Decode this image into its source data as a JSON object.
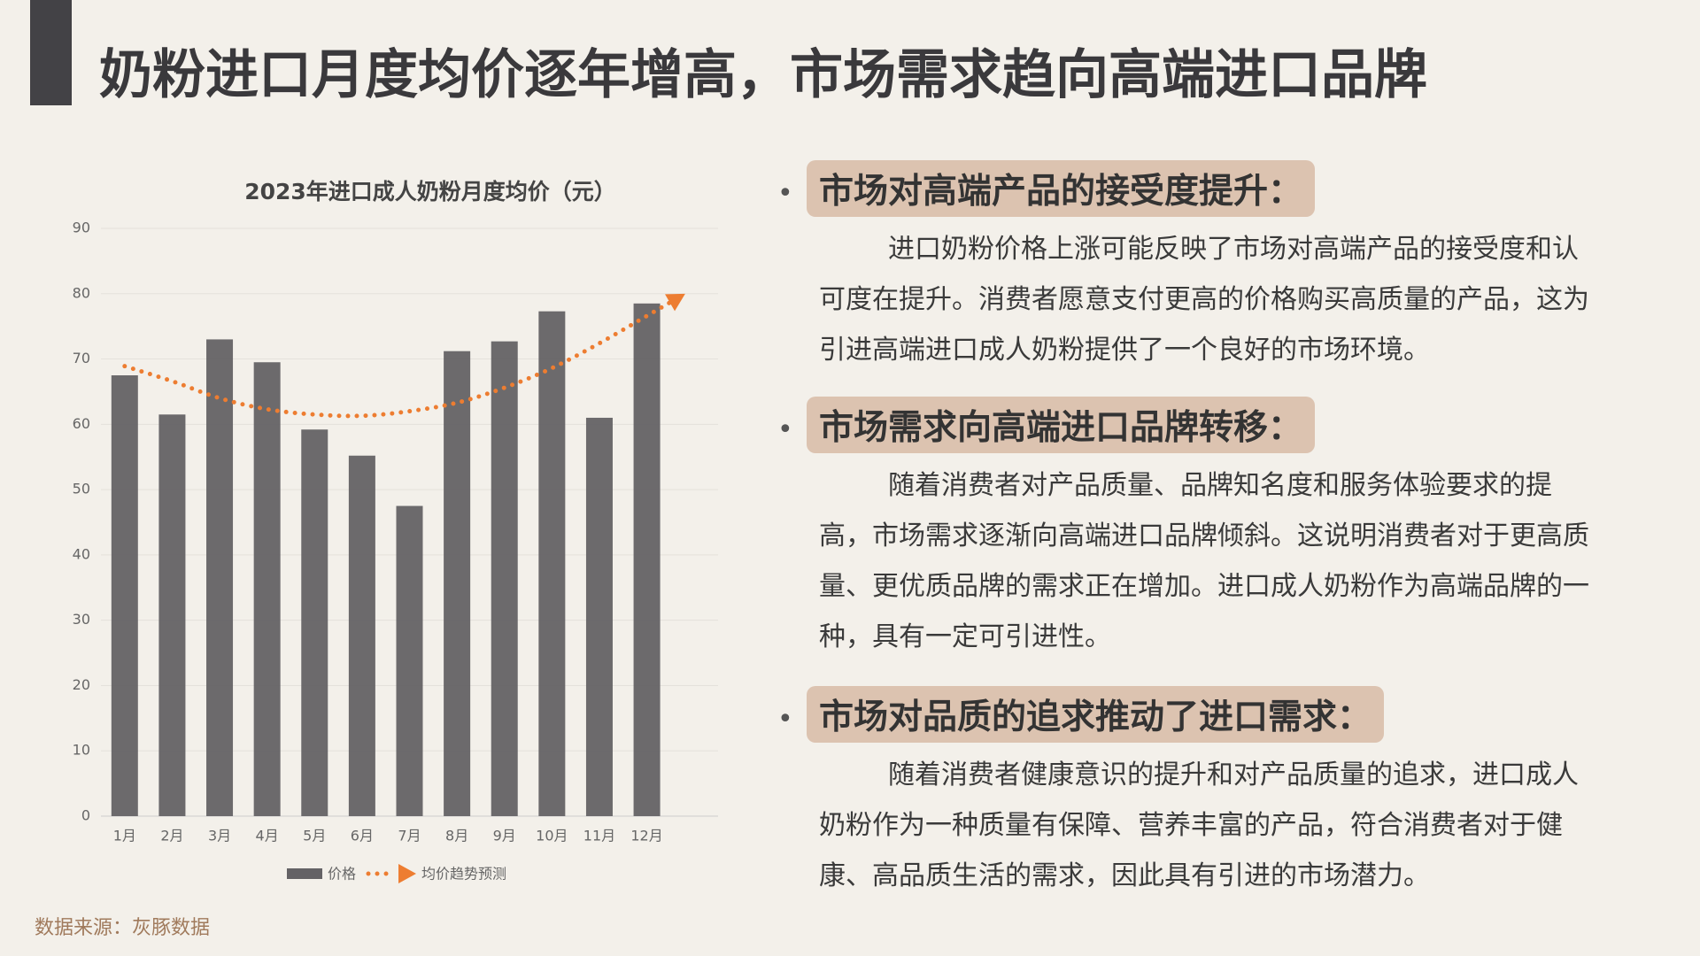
{
  "header": {
    "title": "奶粉进口月度均价逐年增高，市场需求趋向高端进口品牌"
  },
  "chart_data": {
    "type": "bar",
    "title": "2023年进口成人奶粉月度均价（元）",
    "categories": [
      "1月",
      "2月",
      "3月",
      "4月",
      "5月",
      "6月",
      "7月",
      "8月",
      "9月",
      "10月",
      "11月",
      "12月"
    ],
    "series": [
      {
        "name": "价格",
        "type": "bar",
        "color": "#646265",
        "values": [
          67.5,
          61.5,
          73,
          69.5,
          59.2,
          55.2,
          47.5,
          71.2,
          72.7,
          77.3,
          61,
          78.5
        ]
      },
      {
        "name": "均价趋势预测",
        "type": "line",
        "color": "#ed7d31",
        "values": [
          68.9,
          66.6,
          64,
          62.3,
          61.5,
          61.3,
          62,
          63.3,
          65.6,
          68.6,
          72.4,
          76.6
        ]
      }
    ],
    "ylim": [
      0,
      90
    ],
    "yticks": [
      0,
      10,
      20,
      30,
      40,
      50,
      60,
      70,
      80,
      90
    ],
    "grid": true
  },
  "points": [
    {
      "heading": "市场对高端产品的接受度提升：",
      "text": "进口奶粉价格上涨可能反映了市场对高端产品的接受度和认可度在提升。消费者愿意支付更高的价格购买高质量的产品，这为引进高端进口成人奶粉提供了一个良好的市场环境。"
    },
    {
      "heading": "市场需求向高端进口品牌转移：",
      "text": "随着消费者对产品质量、品牌知名度和服务体验要求的提高，市场需求逐渐向高端进口品牌倾斜。这说明消费者对于更高质量、更优质品牌的需求正在增加。进口成人奶粉作为高端品牌的一种，具有一定可引进性。"
    },
    {
      "heading": "市场对品质的追求推动了进口需求：",
      "text": "随着消费者健康意识的提升和对产品质量的追求，进口成人奶粉作为一种质量有保障、营养丰富的产品，符合消费者对于健康、高品质生活的需求，因此具有引进的市场潜力。"
    }
  ],
  "source": "数据来源：灰豚数据"
}
